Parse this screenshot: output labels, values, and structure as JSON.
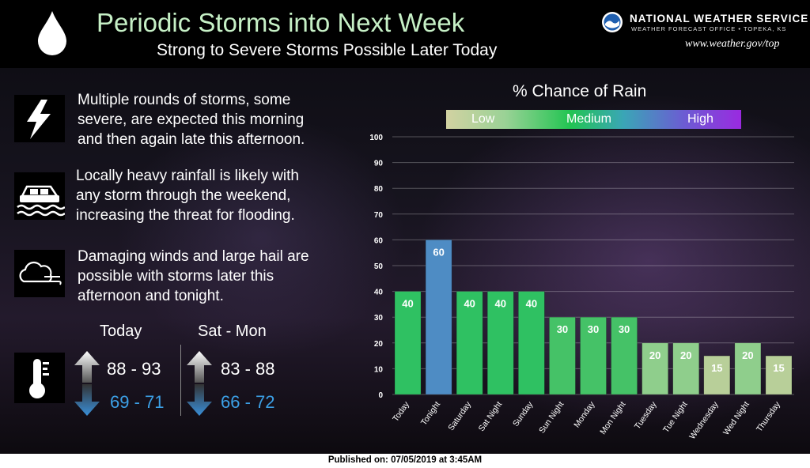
{
  "header": {
    "title": "Periodic Storms into Next Week",
    "subtitle": "Strong to Severe Storms Possible Later Today",
    "agency": "NATIONAL WEATHER SERVICE",
    "office": "WEATHER FORECAST OFFICE • TOPEKA, KS",
    "url": "www.weather.gov/top"
  },
  "bullets": [
    {
      "icon": "lightning-icon",
      "lines": [
        "Multiple rounds of storms, some",
        "severe, are expected this morning",
        "and then again late this afternoon."
      ]
    },
    {
      "icon": "flooded-car-icon",
      "lines": [
        "Locally heavy rainfall is likely with",
        "any storm through the weekend,",
        "increasing the threat for flooding."
      ]
    },
    {
      "icon": "wind-hail-cloud-icon",
      "lines": [
        "Damaging winds and large hail are",
        "possible with storms later this",
        "afternoon and tonight."
      ]
    }
  ],
  "temps": {
    "icon": "thermometer-icon",
    "today": {
      "label": "Today",
      "high": "88 - 93",
      "low": "69 - 71"
    },
    "weekend": {
      "label": "Sat - Mon",
      "high": "83 - 88",
      "low": "66 - 72"
    }
  },
  "scale": {
    "low": "Low",
    "medium": "Medium",
    "high": "High"
  },
  "chart_data": {
    "type": "bar",
    "title": "% Chance of Rain",
    "categories": [
      "Today",
      "Tonight",
      "Saturday",
      "Sat Night",
      "Sunday",
      "Sun Night",
      "Monday",
      "Mon Night",
      "Tuesday",
      "Tue Night",
      "Wednesday",
      "Wed Night",
      "Thursday"
    ],
    "values": [
      40,
      60,
      40,
      40,
      40,
      30,
      30,
      30,
      20,
      20,
      15,
      20,
      15
    ],
    "bar_colors": [
      "#2fc162",
      "#4e8cc4",
      "#2fc162",
      "#2fc162",
      "#2fc162",
      "#45c267",
      "#45c267",
      "#45c267",
      "#8fce8c",
      "#8fce8c",
      "#b8cf99",
      "#8fce8c",
      "#b8cf99"
    ],
    "ylim": [
      0,
      100
    ],
    "yticks": [
      0,
      10,
      20,
      30,
      40,
      50,
      60,
      70,
      80,
      90,
      100
    ],
    "grid": true,
    "xlabel": "",
    "ylabel": ""
  },
  "footer": "Published on: 07/05/2019 at 3:45AM"
}
